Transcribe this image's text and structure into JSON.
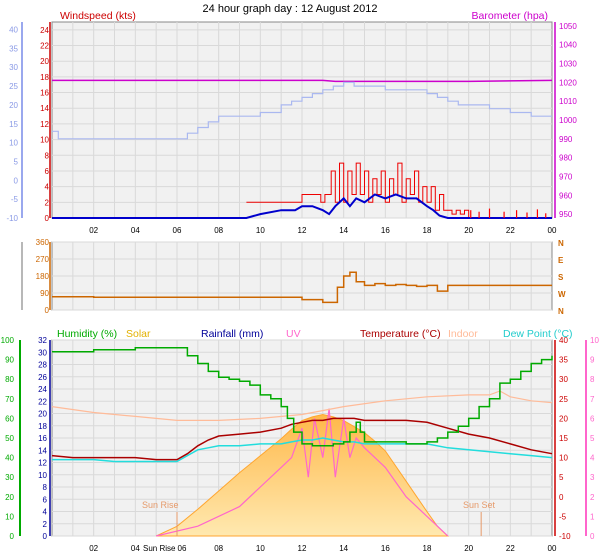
{
  "title": "24 hour graph day : 12 August 2012",
  "colors": {
    "wind": "#ee0000",
    "gust": "#ff0000",
    "avg": "#0000cc",
    "baro": "#cc00cc",
    "temp_scale": "#ff3333",
    "wind_axis": "#cc0000",
    "dir": "#cc6600",
    "humidity": "#00aa00",
    "solar": "#ffc04a",
    "rainfall": "#000099",
    "uv": "#ff66cc",
    "temperature": "#aa0000",
    "indoor": "#ffbb99",
    "dewpoint": "#22dddd",
    "dir_outer": "#aab8f0",
    "grid": "#d9d9d9",
    "plot_bg": "#f1f1f1"
  },
  "chart_data": [
    {
      "id": "wind_baro",
      "type": "line",
      "title": "",
      "x_ticks": [
        "02",
        "04",
        "06",
        "08",
        "10",
        "12",
        "14",
        "16",
        "18",
        "20",
        "22",
        "00"
      ],
      "left_axis": {
        "label": "Windspeed (kts)",
        "ticks": [
          0,
          2,
          4,
          6,
          8,
          10,
          12,
          14,
          16,
          18,
          20,
          22,
          24
        ],
        "range": [
          0,
          25
        ]
      },
      "outer_left_axis": {
        "ticks": [
          -10,
          -5,
          0,
          5,
          10,
          15,
          20,
          25,
          30,
          35,
          40
        ],
        "range": [
          -10,
          42
        ]
      },
      "right_axis": {
        "label": "Barometer (hpa)",
        "ticks": [
          950,
          960,
          970,
          980,
          990,
          1000,
          1010,
          1020,
          1030,
          1040,
          1050
        ],
        "range": [
          948,
          1052
        ]
      },
      "series": [
        {
          "role": "barometer",
          "x": [
            0,
            5,
            10,
            13,
            13.6,
            16,
            18,
            20,
            24
          ],
          "y": [
            1021,
            1021,
            1021,
            1021,
            1020.5,
            1020.5,
            1020.5,
            1020.5,
            1021
          ]
        },
        {
          "role": "outdoor_temp",
          "x": [
            0,
            0.3,
            0.5,
            1,
            2,
            3,
            4,
            5,
            5.5,
            6,
            6.5,
            7,
            7.5,
            8,
            9,
            10,
            11,
            11.5,
            12,
            12.5,
            13,
            13.5,
            14,
            14.5,
            15,
            16,
            17,
            17.5,
            18,
            18.5,
            19,
            19.5,
            20,
            21,
            22,
            23,
            23.5,
            24
          ],
          "y": [
            13,
            11,
            11,
            11,
            11,
            11,
            11,
            11,
            11,
            11,
            12.5,
            14,
            15.5,
            17,
            17,
            18,
            20,
            21,
            22,
            23,
            24,
            25,
            26,
            25,
            25,
            24,
            24,
            24,
            23,
            22,
            21,
            20,
            20,
            19,
            18,
            17,
            17,
            17
          ]
        },
        {
          "role": "wind_speed",
          "x": [
            9.33,
            10,
            11,
            11.67,
            12,
            12.5,
            12.9,
            13.1,
            13.4,
            13.6,
            13.8,
            14,
            14.2,
            14.4,
            14.6,
            14.8,
            15,
            15.2,
            15.4,
            15.6,
            15.8,
            16,
            16.2,
            16.4,
            16.6,
            16.8,
            17,
            17.2,
            17.4,
            17.6,
            17.8,
            18,
            18.2,
            18.4,
            18.6,
            18.8,
            19,
            19.2,
            19.4,
            19.6,
            19.8,
            20,
            24
          ],
          "y": [
            2,
            2,
            2,
            2,
            3,
            3,
            2,
            3,
            6,
            2,
            7,
            2,
            6,
            3,
            7,
            3,
            6,
            2,
            5,
            3,
            6,
            2,
            5,
            3,
            7,
            2,
            5,
            3,
            6,
            2,
            4,
            2,
            4,
            1,
            3,
            1,
            1,
            0.5,
            1,
            0.5,
            1,
            0,
            0
          ]
        },
        {
          "role": "wind_avg",
          "x": [
            0,
            9.33,
            10,
            11,
            11.67,
            12,
            12.5,
            13,
            13.3,
            13.6,
            14,
            14.3,
            14.6,
            15,
            15.5,
            16,
            16.5,
            17,
            17.5,
            18,
            18.3,
            18.6,
            19,
            20,
            24
          ],
          "y": [
            0,
            0,
            0.5,
            1,
            1,
            1.5,
            1.5,
            1,
            0.5,
            1.5,
            2.5,
            1.5,
            2.5,
            2,
            3,
            2.5,
            3,
            2.5,
            2.5,
            1.5,
            1,
            0.3,
            0,
            0,
            0
          ]
        },
        {
          "role": "gust_spikes",
          "x": [
            20.1,
            20.5,
            21,
            21.7,
            22.3,
            22.8,
            23.3,
            23.7
          ],
          "y": [
            1,
            0.8,
            1.2,
            0.8,
            1,
            0.7,
            1.1,
            0.6
          ]
        }
      ]
    },
    {
      "id": "wind_dir",
      "type": "line",
      "title": "",
      "x_ticks": [],
      "left_axis": {
        "ticks": [
          0,
          90,
          180,
          270,
          360
        ],
        "range": [
          0,
          360
        ]
      },
      "right_axis": {
        "ticks": [
          "N",
          "W",
          "S",
          "E",
          "N"
        ]
      },
      "series": [
        {
          "role": "direction",
          "x": [
            0,
            2,
            4,
            6,
            8,
            10,
            12,
            13,
            13.3,
            13.7,
            14,
            14.3,
            14.6,
            15,
            15.5,
            16,
            16.5,
            17,
            17.5,
            18,
            18.5,
            19,
            20,
            21,
            22,
            24
          ],
          "y": [
            70,
            68,
            68,
            68,
            68,
            68,
            55,
            40,
            40,
            120,
            180,
            200,
            150,
            130,
            140,
            130,
            135,
            130,
            125,
            130,
            100,
            130,
            130,
            130,
            130,
            130
          ]
        }
      ]
    },
    {
      "id": "multi",
      "type": "area",
      "title": "",
      "x_ticks": [
        "02",
        "04",
        "06",
        "08",
        "10",
        "12",
        "14",
        "16",
        "18",
        "20",
        "22",
        "00"
      ],
      "labels": [
        "Humidity (%)",
        "Solar",
        "Rainfall (mm)",
        "UV",
        "Temperature (°C)",
        "Indoor",
        "Dew Point (°C)"
      ],
      "annotations": [
        "Sun Rise",
        "Sun Set",
        "Sun Rise"
      ],
      "left_axis_humidity": {
        "ticks": [
          0,
          10,
          20,
          30,
          40,
          50,
          60,
          70,
          80,
          90,
          100
        ],
        "range": [
          0,
          100
        ]
      },
      "left_axis_rain": {
        "ticks": [
          0,
          2,
          4,
          6,
          8,
          10,
          12,
          14,
          16,
          18,
          20,
          22,
          24,
          26,
          28,
          30,
          32
        ],
        "range": [
          0,
          32
        ]
      },
      "right_axis_temp": {
        "ticks": [
          -10,
          -5,
          0,
          5,
          10,
          15,
          20,
          25,
          30,
          35,
          40
        ],
        "range": [
          -10,
          40
        ]
      },
      "right_axis_uv": {
        "ticks": [
          0,
          1,
          2,
          3,
          4,
          5,
          6,
          7,
          8,
          9,
          10
        ],
        "range": [
          0,
          10
        ]
      },
      "series": [
        {
          "role": "humidity",
          "x": [
            0,
            1,
            2,
            3,
            4,
            5,
            6,
            6.5,
            7,
            7.5,
            8,
            8.5,
            9,
            9.5,
            10,
            10.5,
            11,
            11.3,
            11.6,
            12,
            12.5,
            13,
            13.5,
            14,
            14.3,
            14.6,
            14.8,
            15,
            16,
            17,
            17.5,
            18,
            18.5,
            19,
            19.5,
            20,
            20.5,
            21,
            21.5,
            22,
            22.5,
            23,
            23.5,
            24
          ],
          "y": [
            94,
            94,
            95,
            95,
            96,
            96,
            96,
            92,
            88,
            84,
            81,
            80,
            79,
            77,
            72,
            70,
            66,
            60,
            53,
            47,
            46,
            46,
            47,
            48,
            53,
            58,
            53,
            48,
            48,
            47,
            47,
            48,
            50,
            53,
            56,
            60,
            66,
            70,
            78,
            80,
            84,
            88,
            90,
            92
          ]
        },
        {
          "role": "temperature",
          "x": [
            0,
            1,
            2,
            3,
            4,
            5,
            5.5,
            6,
            6.5,
            7,
            7.5,
            8,
            9,
            10,
            11,
            11.5,
            12,
            12.5,
            13,
            13.5,
            14,
            14.5,
            15,
            16,
            17,
            18,
            19,
            20,
            21,
            22,
            23,
            24
          ],
          "y": [
            10.5,
            10,
            10,
            10,
            10,
            9.5,
            9.5,
            9.5,
            11,
            13,
            14.5,
            15.5,
            16,
            16.5,
            17.5,
            18.5,
            19,
            19.5,
            19.5,
            20,
            20,
            20,
            19.5,
            19.5,
            19.5,
            19,
            17.5,
            16,
            15,
            13.5,
            12,
            11
          ]
        },
        {
          "role": "dew_point",
          "x": [
            0,
            1,
            2,
            3,
            4,
            5,
            5.5,
            6,
            6.5,
            7,
            7.5,
            8,
            9,
            10,
            11,
            11.5,
            12,
            12.5,
            13,
            13.5,
            14,
            14.5,
            15,
            16,
            17,
            18,
            19,
            20,
            21,
            22,
            23,
            24
          ],
          "y": [
            9.5,
            9.5,
            9.5,
            9,
            9,
            9,
            9,
            9,
            10.5,
            12,
            12.5,
            13,
            13,
            13.5,
            13.5,
            14,
            14.5,
            14.5,
            15,
            14.5,
            14,
            14,
            13.5,
            13.5,
            13.5,
            13.5,
            12.5,
            12,
            11.5,
            11,
            10.5,
            10
          ]
        },
        {
          "role": "indoor",
          "x": [
            0,
            2,
            4,
            6,
            8,
            10,
            12,
            14,
            16,
            18,
            20,
            21,
            21.5,
            22,
            23,
            24
          ],
          "y": [
            23,
            21.5,
            20.5,
            19.5,
            19.5,
            20,
            21,
            23,
            24.5,
            25.5,
            26,
            26,
            27,
            25.5,
            24.5,
            24
          ]
        },
        {
          "role": "solar",
          "x": [
            5,
            6,
            7,
            8,
            9,
            10,
            11,
            11.5,
            12,
            12.5,
            13,
            13.5,
            14,
            14.5,
            15,
            15.5,
            16,
            17,
            18,
            18.5,
            19
          ],
          "y": [
            0,
            0.08,
            0.22,
            0.37,
            0.52,
            0.66,
            0.8,
            0.88,
            0.95,
            0.98,
            1.0,
            0.98,
            0.95,
            0.9,
            0.85,
            0.78,
            0.7,
            0.45,
            0.2,
            0.08,
            0
          ]
        },
        {
          "role": "uv",
          "x": [
            5,
            7,
            9,
            10,
            11,
            11.5,
            12,
            12.3,
            12.6,
            13,
            13.3,
            13.6,
            14,
            14.3,
            14.6,
            15,
            16,
            17,
            18,
            18.5,
            19
          ],
          "y": [
            0,
            0.5,
            1.5,
            2.5,
            3.5,
            4,
            5.5,
            3,
            6,
            4,
            6.5,
            3,
            6,
            4,
            5,
            4.5,
            3.5,
            2,
            1,
            0.5,
            0
          ]
        }
      ]
    }
  ]
}
